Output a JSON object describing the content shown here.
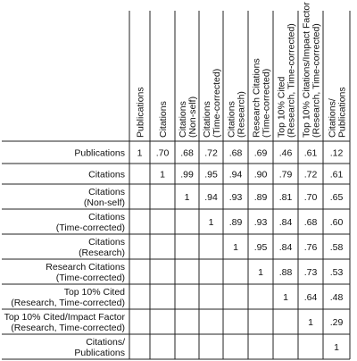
{
  "chart_data": {
    "type": "table",
    "columns": [
      [
        "Publications"
      ],
      [
        "Citations"
      ],
      [
        "Citations",
        "(Non-self)"
      ],
      [
        "Citations",
        "(Time-corrected)"
      ],
      [
        "Citations",
        "(Research)"
      ],
      [
        "Research Citations",
        "(Time-corrected)"
      ],
      [
        "Top 10% Cited",
        "(Research, Time-corrected)"
      ],
      [
        "Top 10% Citations/Impact Factor",
        "(Research, Time-corrected)"
      ],
      [
        "Citations/",
        "Publications"
      ]
    ],
    "rows": [
      [
        "Publications"
      ],
      [
        "Citations"
      ],
      [
        "Citations",
        "(Non-self)"
      ],
      [
        "Citations",
        "(Time-corrected)"
      ],
      [
        "Citations",
        "(Research)"
      ],
      [
        "Research Citations",
        "(Time-corrected)"
      ],
      [
        "Top 10% Cited",
        "(Research, Time-corrected)"
      ],
      [
        "Top 10% Cited/Impact Factor",
        "(Research, Time-corrected)"
      ],
      [
        "Citations/",
        "Publications"
      ]
    ],
    "values": [
      [
        "1",
        ".70",
        ".68",
        ".72",
        ".68",
        ".69",
        ".46",
        ".61",
        ".12"
      ],
      [
        "",
        "1",
        ".99",
        ".95",
        ".94",
        ".90",
        ".79",
        ".72",
        ".61"
      ],
      [
        "",
        "",
        "1",
        ".94",
        ".93",
        ".89",
        ".81",
        ".70",
        ".65"
      ],
      [
        "",
        "",
        "",
        "1",
        ".89",
        ".93",
        ".84",
        ".68",
        ".60"
      ],
      [
        "",
        "",
        "",
        "",
        "1",
        ".95",
        ".84",
        ".76",
        ".58"
      ],
      [
        "",
        "",
        "",
        "",
        "",
        "1",
        ".88",
        ".73",
        ".53"
      ],
      [
        "",
        "",
        "",
        "",
        "",
        "",
        "1",
        ".64",
        ".48"
      ],
      [
        "",
        "",
        "",
        "",
        "",
        "",
        "",
        "1",
        ".29"
      ],
      [
        "",
        "",
        "",
        "",
        "",
        "",
        "",
        "",
        "1"
      ]
    ]
  }
}
